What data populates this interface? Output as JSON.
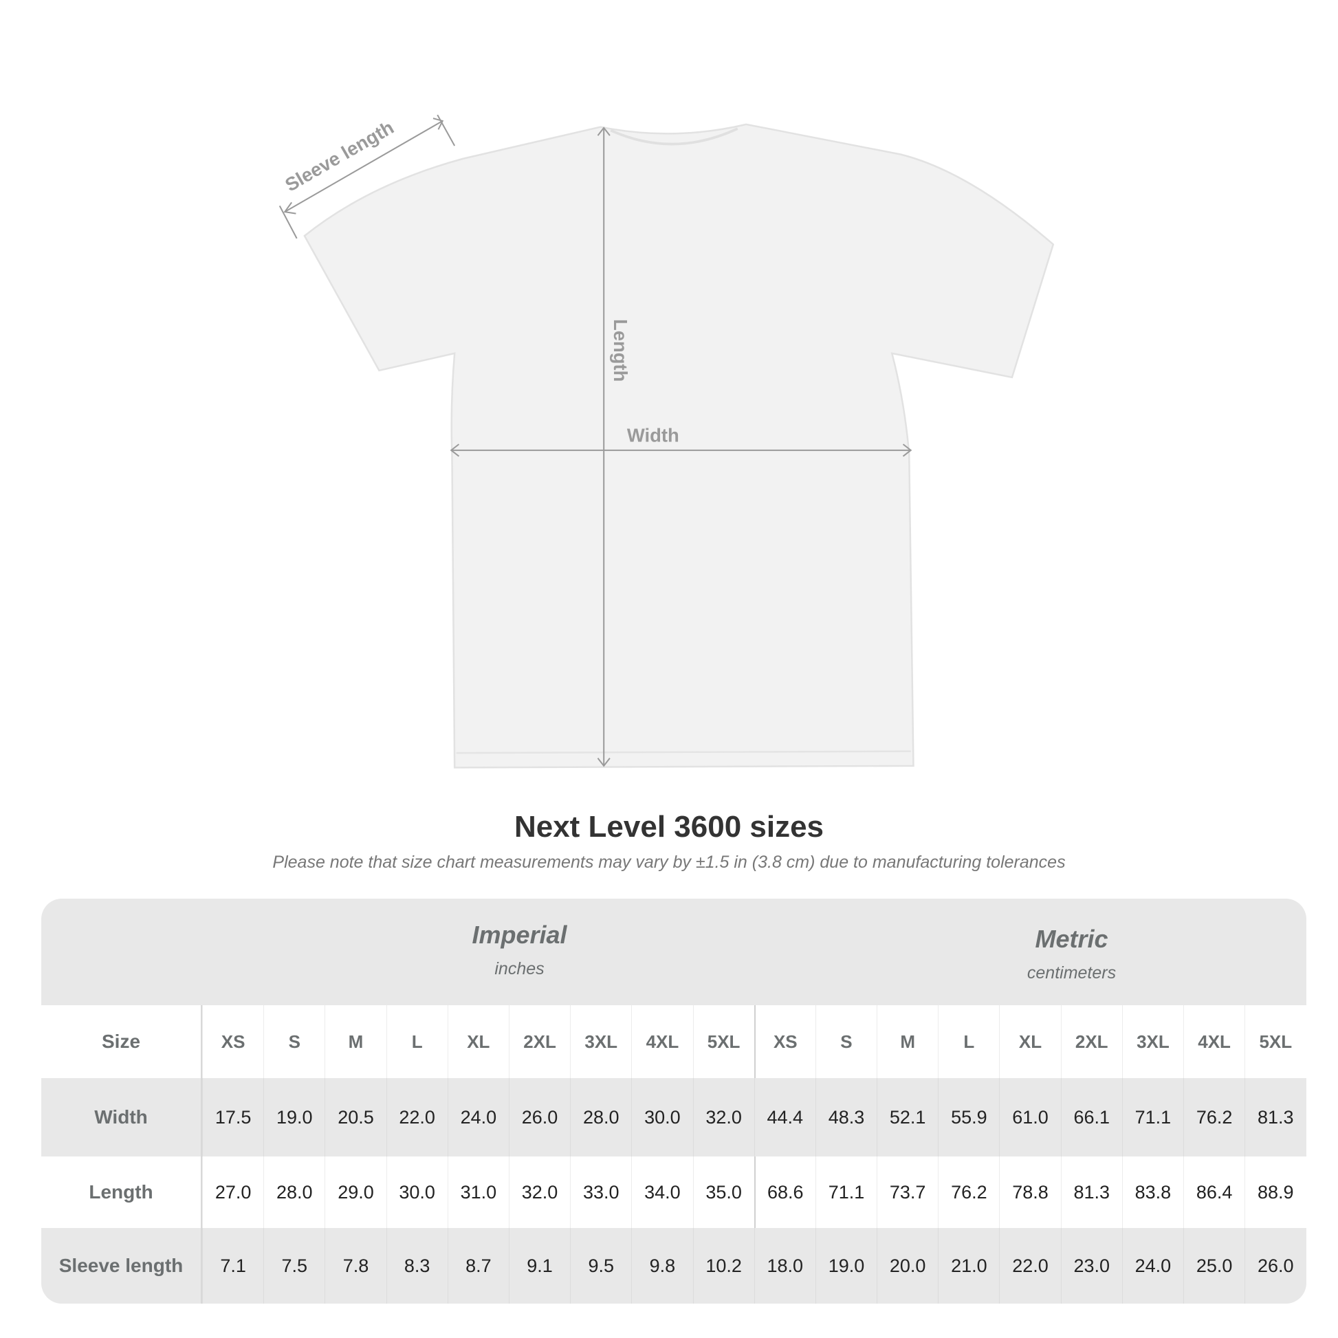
{
  "annotations": {
    "sleeve": "Sleeve length",
    "length": "Length",
    "width": "Width"
  },
  "title": "Next Level 3600 sizes",
  "subtitle": "Please note that size chart measurements may vary by ±1.5 in (3.8 cm) due to manufacturing tolerances",
  "table": {
    "imperial": {
      "name": "Imperial",
      "unit": "inches"
    },
    "metric": {
      "name": "Metric",
      "unit": "centimeters"
    },
    "rows": [
      {
        "label": "Size",
        "values": [
          "XS",
          "S",
          "M",
          "L",
          "XL",
          "2XL",
          "3XL",
          "4XL",
          "5XL",
          "XS",
          "S",
          "M",
          "L",
          "XL",
          "2XL",
          "3XL",
          "4XL",
          "5XL"
        ]
      },
      {
        "label": "Width",
        "values": [
          "17.5",
          "19.0",
          "20.5",
          "22.0",
          "24.0",
          "26.0",
          "28.0",
          "30.0",
          "32.0",
          "44.4",
          "48.3",
          "52.1",
          "55.9",
          "61.0",
          "66.1",
          "71.1",
          "76.2",
          "81.3"
        ]
      },
      {
        "label": "Length",
        "values": [
          "27.0",
          "28.0",
          "29.0",
          "30.0",
          "31.0",
          "32.0",
          "33.0",
          "34.0",
          "35.0",
          "68.6",
          "71.1",
          "73.7",
          "76.2",
          "78.8",
          "81.3",
          "83.8",
          "86.4",
          "88.9"
        ]
      },
      {
        "label": "Sleeve length",
        "values": [
          "7.1",
          "7.5",
          "7.8",
          "8.3",
          "8.7",
          "9.1",
          "9.5",
          "9.8",
          "10.2",
          "18.0",
          "19.0",
          "20.0",
          "21.0",
          "22.0",
          "23.0",
          "24.0",
          "25.0",
          "26.0"
        ]
      }
    ]
  },
  "colors": {
    "header_bg": "#e8e8e8",
    "label_text": "#6b6f70",
    "annotation": "#9a9a9a",
    "shirt": "#f2f2f2"
  }
}
